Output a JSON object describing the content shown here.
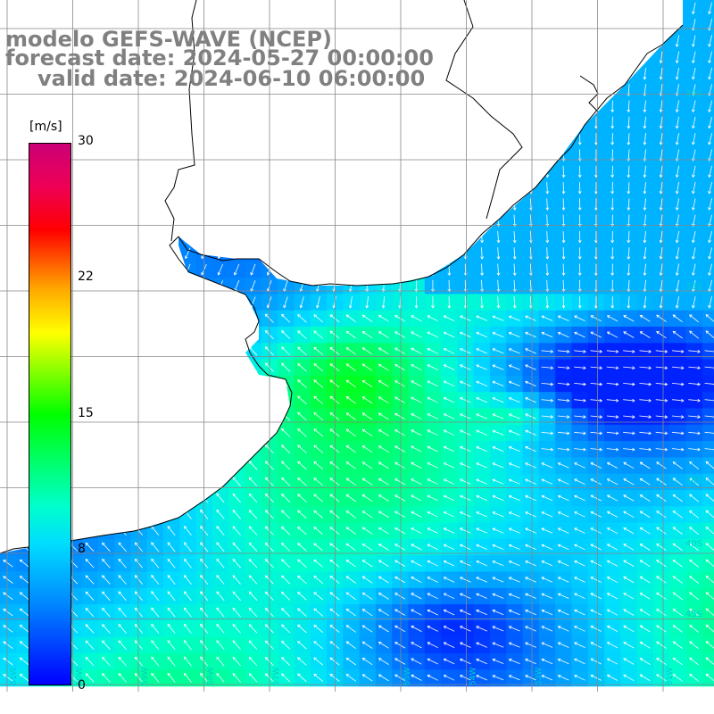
{
  "title": {
    "line1": "modelo GEFS-WAVE (NCEP)",
    "line2": "forecast date: 2024-05-27 00:00:00",
    "line3": "valid date: 2024-06-10 06:00:00"
  },
  "colorbar": {
    "unit": "[m/s]",
    "min": 0,
    "max": 30,
    "ticks": [
      "30",
      "22",
      "15",
      "8",
      "0"
    ],
    "colors": [
      "#0000ff",
      "#0088ff",
      "#00ddff",
      "#00ffcc",
      "#00ff00",
      "#aaff00",
      "#ffff00",
      "#ffaa00",
      "#ff0000",
      "#cc0077"
    ]
  },
  "map": {
    "land_color": "#ffffff",
    "coast_color": "#000000",
    "grid_color": "#888888",
    "arrow_color": "#ffffff",
    "lat_labels": [
      "30S",
      "35S",
      "38S",
      "40S",
      "45S"
    ],
    "lon_labels": [
      "61W",
      "60W",
      "59W",
      "58W",
      "57W",
      "56W",
      "55W",
      "54W",
      "53W",
      "52W",
      "51W"
    ]
  }
}
